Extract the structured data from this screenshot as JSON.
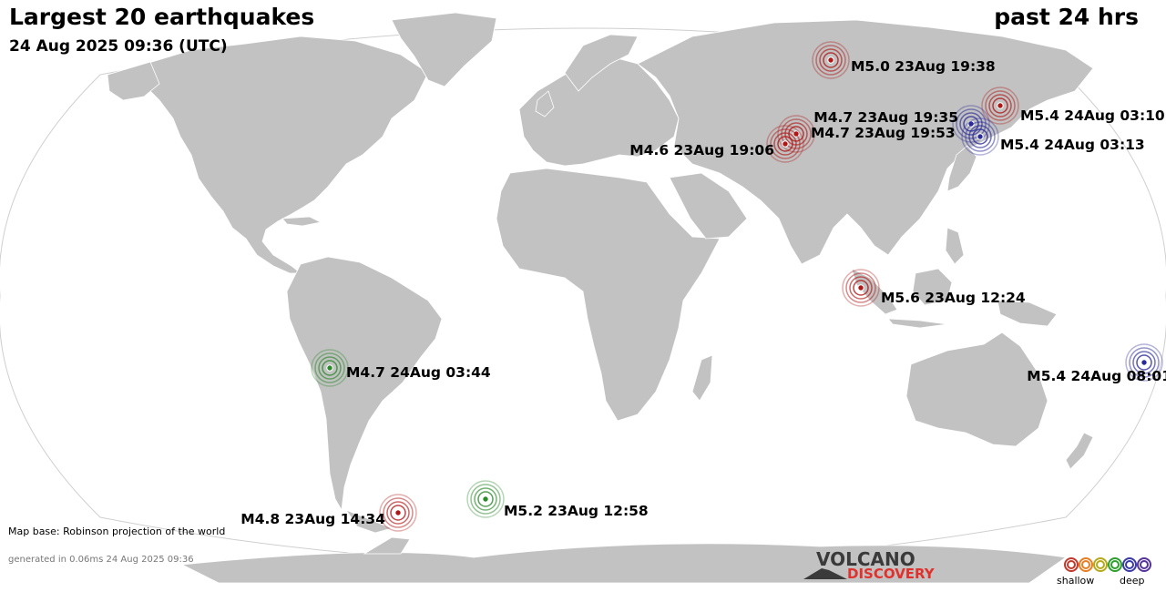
{
  "header": {
    "title": "Largest 20 earthquakes",
    "timestamp": "24 Aug 2025 09:36 (UTC)",
    "period": "past 24 hrs"
  },
  "footer": {
    "map_base": "Map base: Robinson projection of the world",
    "generated": "generated in 0.06ms 24 Aug 2025 09:36"
  },
  "logo": {
    "line1": "VOLCANO",
    "line2": "DISCOVERY"
  },
  "legend": {
    "shallow": "shallow",
    "deep": "deep",
    "depth_colors": [
      "#c0392b",
      "#e67e22",
      "#b5a91a",
      "#2e9e2e",
      "#3a3aa6",
      "#553399"
    ]
  },
  "colors": {
    "land": "#c2c2c2",
    "ocean": "#ffffff",
    "shallow": "#b01818",
    "intermediate": "#2a8a2a",
    "deep": "#2a2a99"
  },
  "earthquakes": [
    {
      "id": "eq-siberia",
      "label": "M5.0 23Aug 19:38",
      "lat": 61.5,
      "lon": 90.0,
      "depth": "shallow"
    },
    {
      "id": "eq-kurils-1",
      "label": "M5.4 24Aug 03:10",
      "lat": 46.0,
      "lon": 151.5,
      "depth": "shallow"
    },
    {
      "id": "eq-japan-deep-1",
      "label": "M4.7 23Aug 19:35",
      "lat": 40.0,
      "lon": 142.0,
      "depth": "deep"
    },
    {
      "id": "eq-japan-deep-2",
      "label": "M5.4 24Aug 03:13",
      "lat": 37.0,
      "lon": 143.0,
      "depth": "deep"
    },
    {
      "id": "eq-central-asia-1",
      "label": "M4.7 23Aug 19:53",
      "lat": 37.5,
      "lon": 74.0,
      "depth": "shallow"
    },
    {
      "id": "eq-central-asia-2",
      "label": "M4.6 23Aug 19:06",
      "lat": 35.5,
      "lon": 71.0,
      "depth": "shallow"
    },
    {
      "id": "eq-sumatra",
      "label": "M5.6 23Aug 12:24",
      "lat": -3.5,
      "lon": 101.0,
      "depth": "shallow"
    },
    {
      "id": "eq-vanuatu",
      "label": "M5.4 24Aug 08:01",
      "lat": -19.5,
      "lon": 169.5,
      "depth": "deep"
    },
    {
      "id": "eq-bolivia",
      "label": "M4.7 24Aug 03:44",
      "lat": -22.5,
      "lon": -66.0,
      "depth": "intermediate"
    },
    {
      "id": "eq-drake",
      "label": "M4.8 23Aug 14:34",
      "lat": -55.0,
      "lon": -59.5,
      "depth": "shallow"
    },
    {
      "id": "eq-south-sandwich",
      "label": "M5.2 23Aug 12:58",
      "lat": -54.0,
      "lon": -28.0,
      "depth": "intermediate"
    }
  ]
}
